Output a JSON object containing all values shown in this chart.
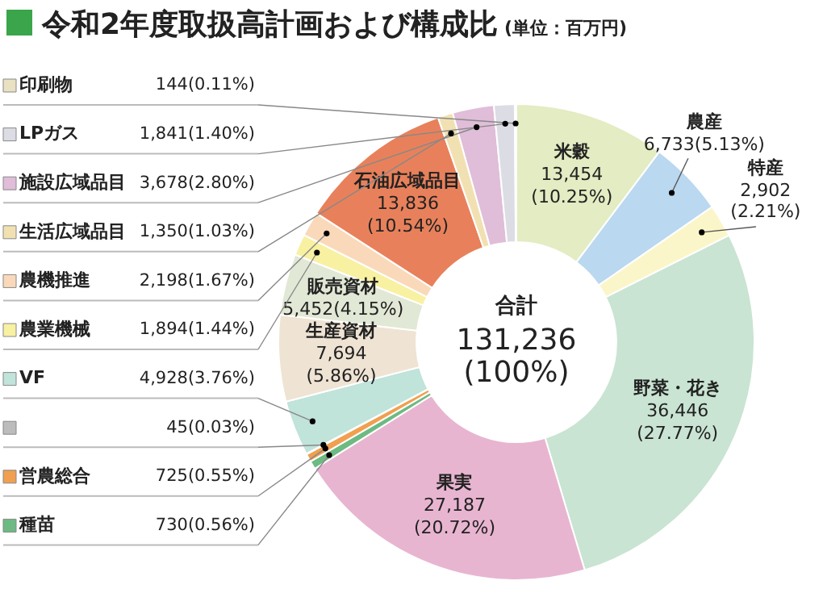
{
  "chart_data": {
    "type": "donut",
    "title": "令和2年度取扱高計画および構成比",
    "subtitle": "(単位：百万円)",
    "categories": [
      "米穀",
      "農産",
      "特産",
      "野菜・花き",
      "果実",
      "種苗",
      "営農総合",
      null,
      "VF",
      "生産資材",
      "販売資材",
      "農業機械",
      "農機推進",
      "石油広域品目",
      "生活広域品目",
      "施設広域品目",
      "LPガス",
      "印刷物"
    ],
    "values": [
      13454,
      6733,
      2902,
      36446,
      27187,
      730,
      725,
      45,
      4928,
      7694,
      5452,
      1894,
      2198,
      13836,
      1350,
      3678,
      1841,
      144
    ],
    "value_labels": [
      "13,454(10.25%)",
      "6,733(5.13%)",
      "2,902(2.21%)",
      "36,446(27.77%)",
      "27,187(20.72%)",
      "730(0.56%)",
      "725(0.55%)",
      "45(0.03%)",
      "4,928(3.76%)",
      "7,694(5.86%)",
      "5,452(4.15%)",
      "1,894(1.44%)",
      "2,198(1.67%)",
      "13,836(10.54%)",
      "1,350(1.03%)",
      "3,678(2.80%)",
      "1,841(1.40%)",
      "144(0.11%)"
    ],
    "colors": [
      "#e3ecc2",
      "#bad8ef",
      "#fbf6c9",
      "#c9e4d2",
      "#e8b5d1",
      "#6dba82",
      "#f0a050",
      "#bcbcbc",
      "#c0e3da",
      "#efe3d3",
      "#e1e8d5",
      "#f8f1a2",
      "#fad9ba",
      "#e8815b",
      "#f1e1b2",
      "#e0bdd8",
      "#dcdce4",
      "#e9e1c1"
    ],
    "annotations": [
      "合計",
      "131,236",
      "(100%)"
    ],
    "legend": "left"
  }
}
